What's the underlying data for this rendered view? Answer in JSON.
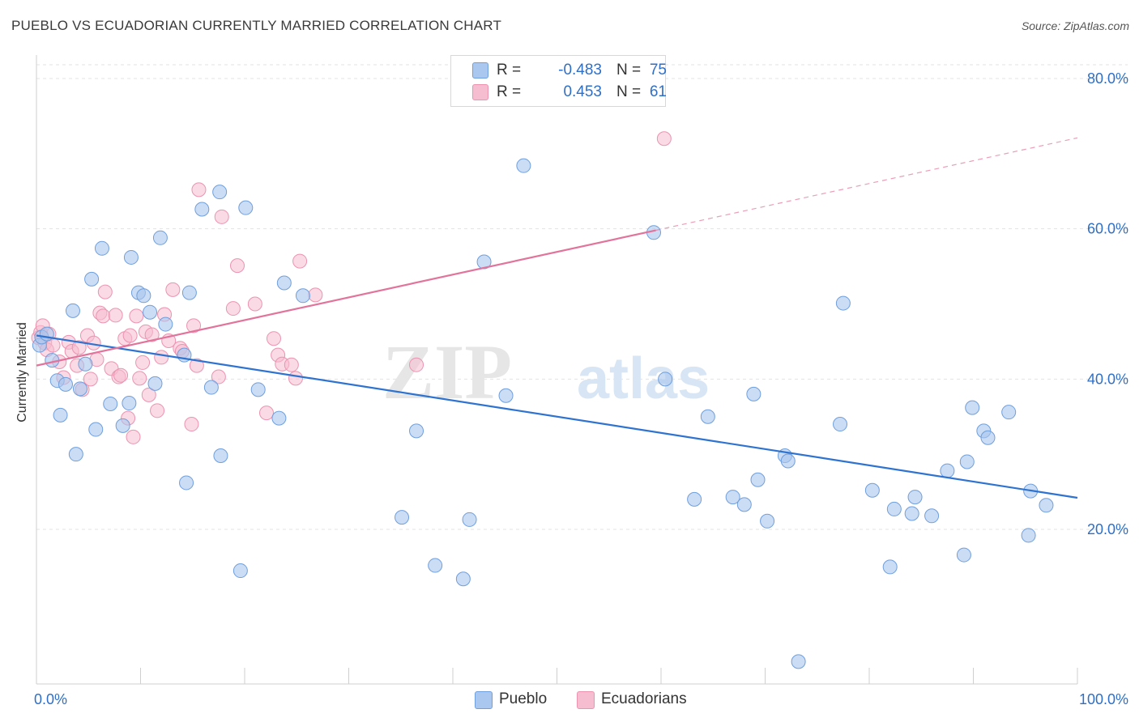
{
  "header": {
    "title": "PUEBLO VS ECUADORIAN CURRENTLY MARRIED CORRELATION CHART",
    "source": "Source: ZipAtlas.com"
  },
  "watermark": {
    "zip": "ZIP",
    "atlas": "atlas"
  },
  "legend": {
    "rows": [
      {
        "r_label": "R =",
        "r_value": "-0.483",
        "n_label": "N =",
        "n_value": "75"
      },
      {
        "r_label": "R =",
        "r_value": "0.453",
        "n_label": "N =",
        "n_value": "61"
      }
    ]
  },
  "bottom_legend": {
    "pueblo": "Pueblo",
    "ecuadorians": "Ecuadorians"
  },
  "chart_data": {
    "type": "scatter",
    "title": "PUEBLO VS ECUADORIAN CURRENTLY MARRIED CORRELATION CHART",
    "ylabel": "Currently Married",
    "xlabel": "",
    "xlim": [
      0,
      100
    ],
    "ylim": [
      0,
      85
    ],
    "x_tick_labels": {
      "left": "0.0%",
      "right": "100.0%"
    },
    "y_ticks": [
      {
        "value": 20,
        "label": "20.0%"
      },
      {
        "value": 40,
        "label": "40.0%"
      },
      {
        "value": 60,
        "label": "60.0%"
      },
      {
        "value": 80,
        "label": "80.0%"
      }
    ],
    "grid": true,
    "colors": {
      "pueblo_fill": "#a9c7ef",
      "pueblo_stroke": "#6f9fdd",
      "pueblo_line": "#2e73d0",
      "ecuadorian_fill": "#f6bccf",
      "ecuadorian_stroke": "#ec93b0",
      "ecuadorian_line": "#e2739b",
      "axis_label": "#2f6fc6"
    },
    "series": [
      {
        "name": "Pueblo",
        "r": -0.483,
        "n": 75,
        "trend": {
          "x": [
            0,
            100
          ],
          "y": [
            45.8,
            24.2
          ]
        },
        "points": [
          [
            0.3,
            44.5
          ],
          [
            0.5,
            45.6
          ],
          [
            1.0,
            46.0
          ],
          [
            1.5,
            42.5
          ],
          [
            2.0,
            39.8
          ],
          [
            2.3,
            35.2
          ],
          [
            2.8,
            39.3
          ],
          [
            3.5,
            49.1
          ],
          [
            3.8,
            30.0
          ],
          [
            4.2,
            38.7
          ],
          [
            4.7,
            42.0
          ],
          [
            5.3,
            53.3
          ],
          [
            5.7,
            33.3
          ],
          [
            6.3,
            57.4
          ],
          [
            7.1,
            36.7
          ],
          [
            8.3,
            33.8
          ],
          [
            8.9,
            36.8
          ],
          [
            9.1,
            56.2
          ],
          [
            9.8,
            51.5
          ],
          [
            10.3,
            51.1
          ],
          [
            10.9,
            48.9
          ],
          [
            11.4,
            39.4
          ],
          [
            11.9,
            58.8
          ],
          [
            12.4,
            47.3
          ],
          [
            14.2,
            43.2
          ],
          [
            14.4,
            26.2
          ],
          [
            14.7,
            51.5
          ],
          [
            15.9,
            62.6
          ],
          [
            16.8,
            38.9
          ],
          [
            17.6,
            64.9
          ],
          [
            17.7,
            29.8
          ],
          [
            19.6,
            14.5
          ],
          [
            20.1,
            62.8
          ],
          [
            21.3,
            38.6
          ],
          [
            23.3,
            34.8
          ],
          [
            23.8,
            52.8
          ],
          [
            25.6,
            51.1
          ],
          [
            35.1,
            21.6
          ],
          [
            36.5,
            33.1
          ],
          [
            38.3,
            15.2
          ],
          [
            41.0,
            13.4
          ],
          [
            41.6,
            21.3
          ],
          [
            43.0,
            55.6
          ],
          [
            45.1,
            37.8
          ],
          [
            46.8,
            68.4
          ],
          [
            59.3,
            59.5
          ],
          [
            60.4,
            40.0
          ],
          [
            63.2,
            24.0
          ],
          [
            64.5,
            35.0
          ],
          [
            66.9,
            24.3
          ],
          [
            68.0,
            23.3
          ],
          [
            68.9,
            38.0
          ],
          [
            69.3,
            26.6
          ],
          [
            70.2,
            21.1
          ],
          [
            71.9,
            29.8
          ],
          [
            72.2,
            29.1
          ],
          [
            73.2,
            2.4
          ],
          [
            77.2,
            34.0
          ],
          [
            77.5,
            50.1
          ],
          [
            80.3,
            25.2
          ],
          [
            82.0,
            15.0
          ],
          [
            82.4,
            22.7
          ],
          [
            84.1,
            22.1
          ],
          [
            84.4,
            24.3
          ],
          [
            86.0,
            21.8
          ],
          [
            87.5,
            27.8
          ],
          [
            89.1,
            16.6
          ],
          [
            89.4,
            29.0
          ],
          [
            89.9,
            36.2
          ],
          [
            91.0,
            33.1
          ],
          [
            91.4,
            32.2
          ],
          [
            93.4,
            35.6
          ],
          [
            95.3,
            19.2
          ],
          [
            95.5,
            25.1
          ],
          [
            97.0,
            23.2
          ]
        ]
      },
      {
        "name": "Ecuadorians",
        "r": 0.453,
        "n": 61,
        "trend": {
          "x": [
            0,
            59.5
          ],
          "y": [
            41.8,
            59.8
          ]
        },
        "trend_dashed": {
          "x": [
            59.5,
            100
          ],
          "y": [
            59.8,
            72.1
          ]
        },
        "points": [
          [
            0.2,
            45.5
          ],
          [
            0.4,
            46.2
          ],
          [
            0.6,
            47.1
          ],
          [
            0.8,
            44.8
          ],
          [
            1.0,
            43.9
          ],
          [
            1.2,
            46.0
          ],
          [
            1.6,
            44.5
          ],
          [
            2.2,
            42.3
          ],
          [
            2.6,
            40.2
          ],
          [
            3.1,
            44.9
          ],
          [
            3.4,
            43.7
          ],
          [
            3.9,
            41.8
          ],
          [
            4.1,
            44.2
          ],
          [
            4.4,
            38.6
          ],
          [
            4.9,
            45.8
          ],
          [
            5.2,
            40.0
          ],
          [
            5.5,
            44.8
          ],
          [
            5.8,
            42.6
          ],
          [
            6.1,
            48.8
          ],
          [
            6.4,
            48.4
          ],
          [
            6.6,
            51.6
          ],
          [
            7.2,
            41.4
          ],
          [
            7.6,
            48.5
          ],
          [
            7.9,
            40.3
          ],
          [
            8.1,
            40.5
          ],
          [
            8.5,
            45.4
          ],
          [
            8.8,
            34.8
          ],
          [
            9.0,
            45.8
          ],
          [
            9.3,
            32.3
          ],
          [
            9.6,
            48.4
          ],
          [
            9.9,
            40.1
          ],
          [
            10.2,
            42.2
          ],
          [
            10.5,
            46.3
          ],
          [
            10.8,
            37.9
          ],
          [
            11.1,
            45.9
          ],
          [
            11.6,
            35.8
          ],
          [
            12.0,
            42.9
          ],
          [
            12.3,
            48.6
          ],
          [
            12.7,
            45.1
          ],
          [
            13.1,
            51.9
          ],
          [
            13.8,
            44.1
          ],
          [
            14.0,
            43.7
          ],
          [
            14.9,
            34.0
          ],
          [
            15.1,
            47.1
          ],
          [
            15.6,
            65.2
          ],
          [
            17.5,
            40.3
          ],
          [
            17.8,
            61.6
          ],
          [
            18.9,
            49.4
          ],
          [
            19.3,
            55.1
          ],
          [
            21.0,
            50.0
          ],
          [
            22.8,
            45.4
          ],
          [
            23.2,
            43.2
          ],
          [
            23.6,
            42.0
          ],
          [
            24.5,
            41.9
          ],
          [
            25.3,
            55.7
          ],
          [
            26.8,
            51.2
          ],
          [
            36.5,
            41.9
          ],
          [
            60.3,
            72.0
          ],
          [
            15.4,
            41.8
          ],
          [
            22.1,
            35.5
          ],
          [
            24.9,
            40.1
          ]
        ]
      }
    ]
  }
}
